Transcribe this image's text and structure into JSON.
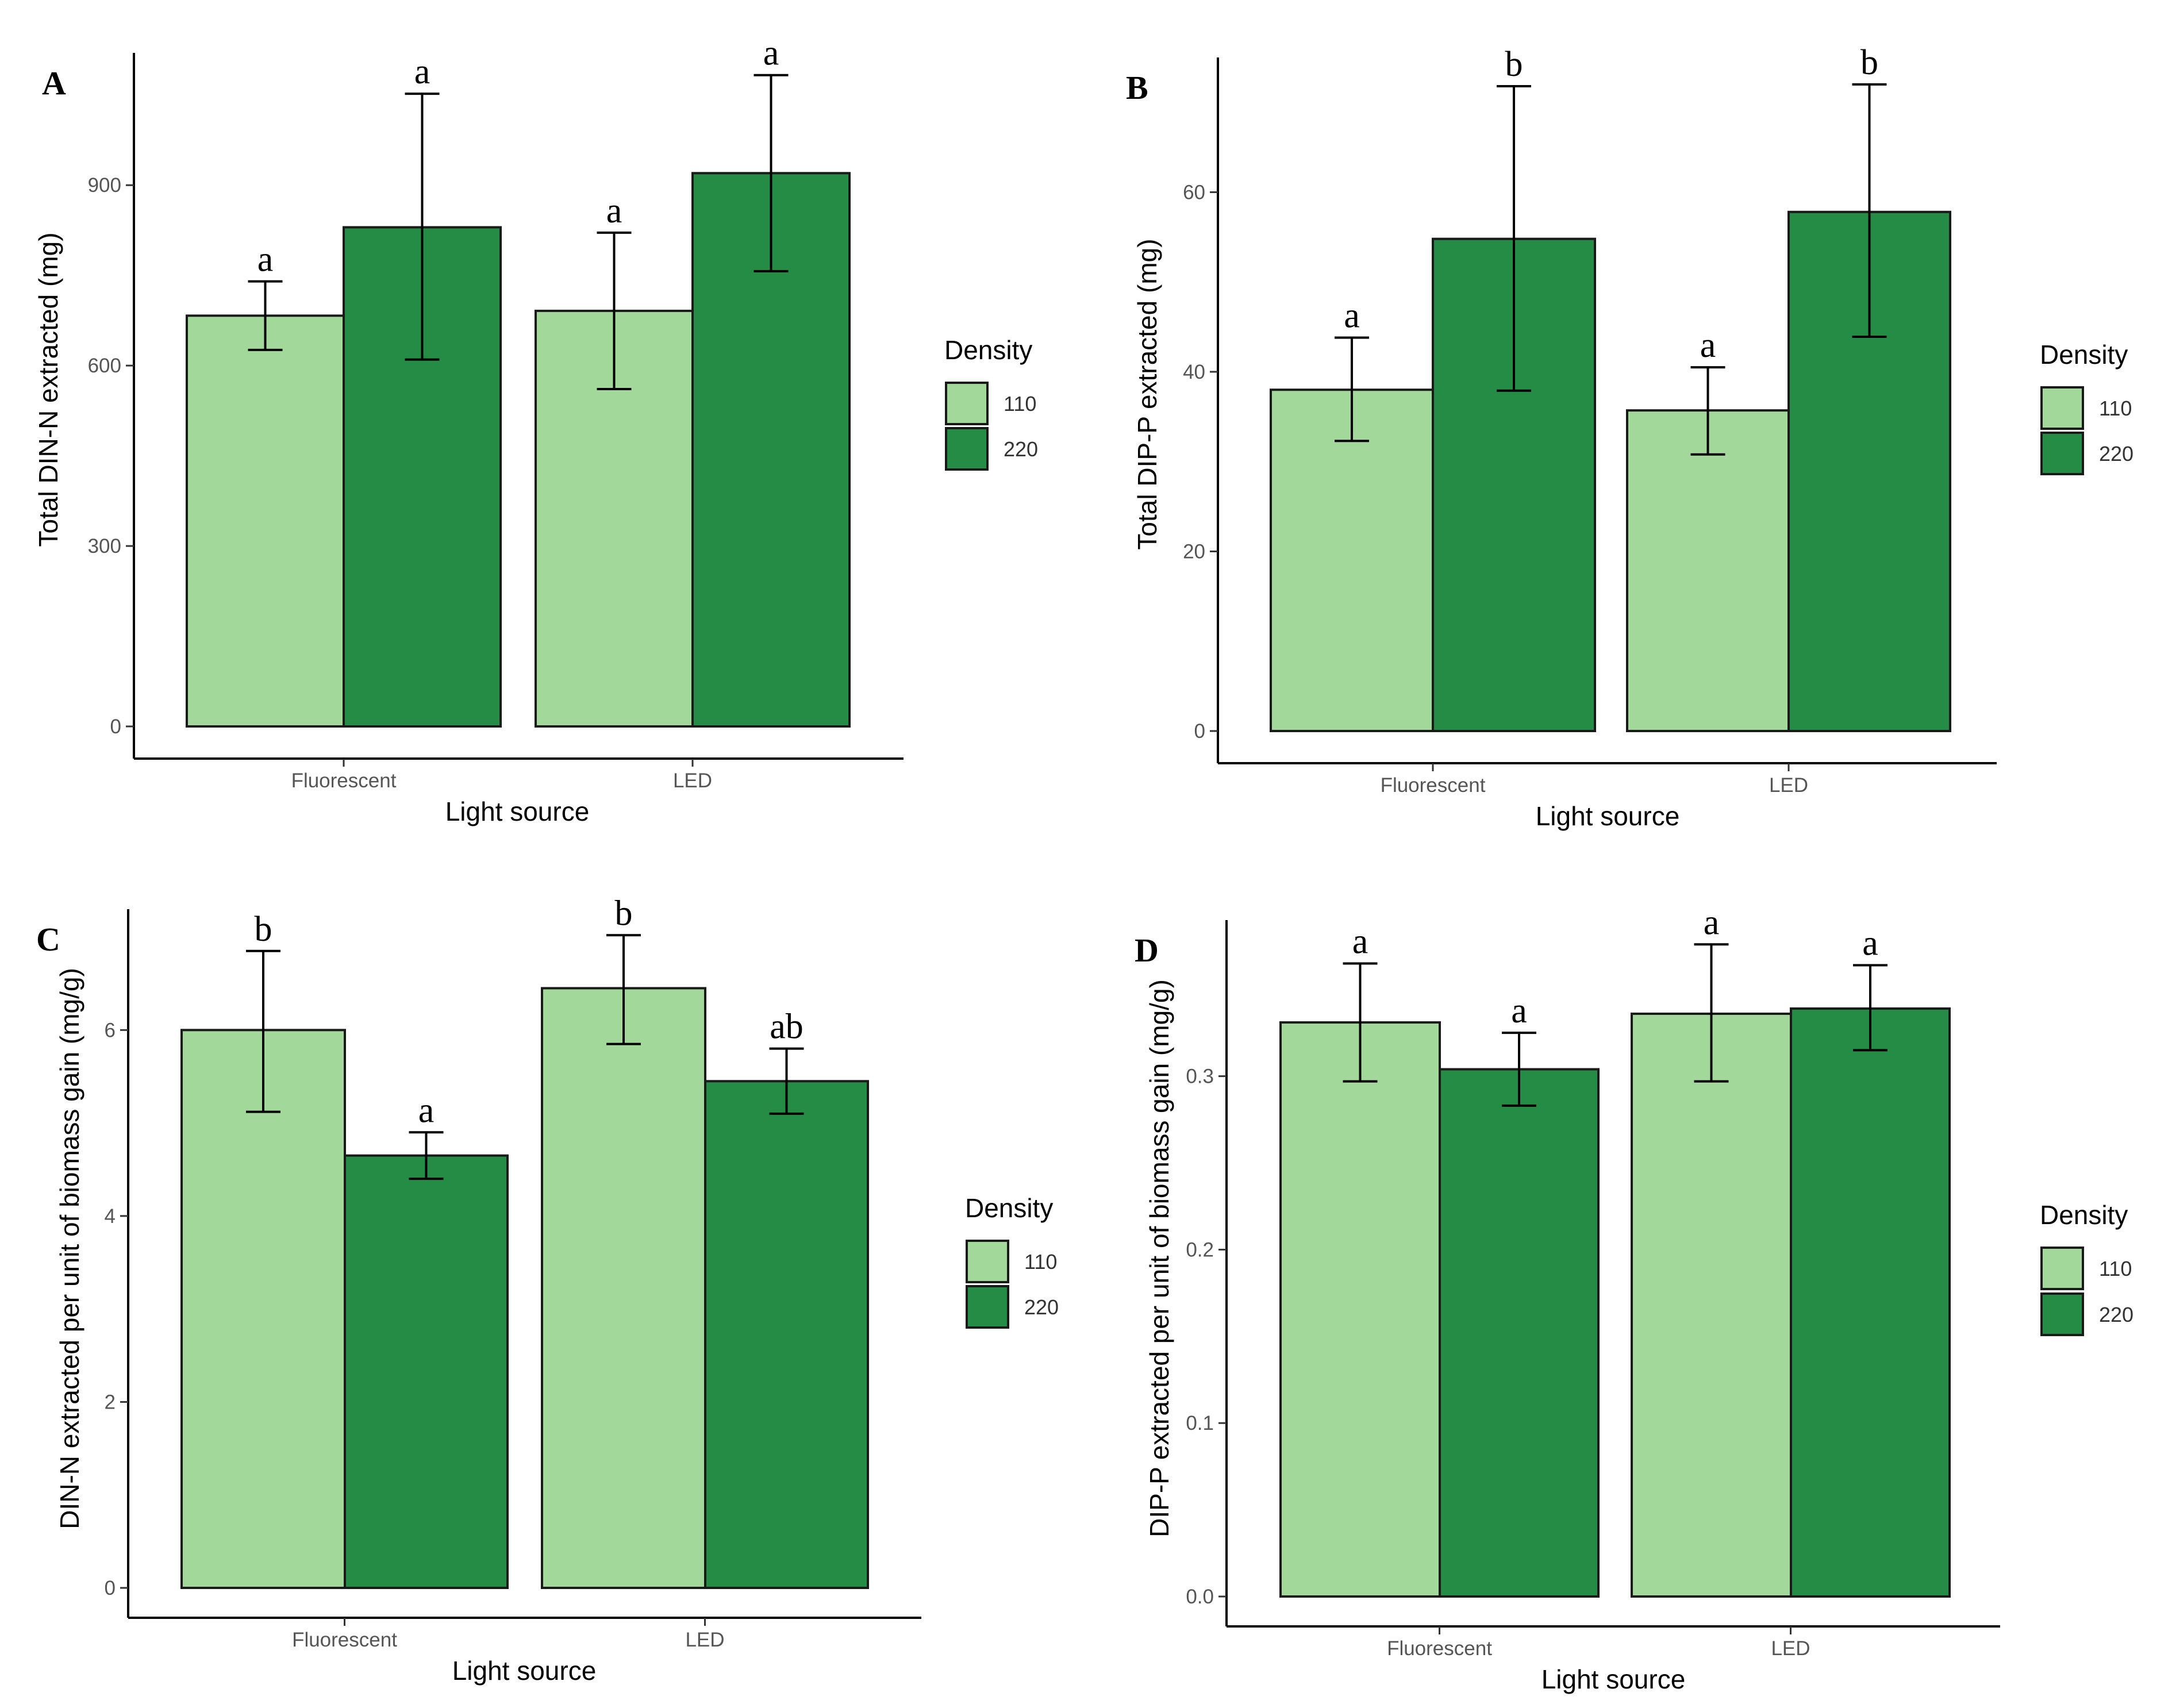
{
  "colors": {
    "d110": "#a2d99a",
    "d220": "#258c45",
    "stroke": "#1a1a1a"
  },
  "legend": {
    "title": "Density",
    "labels": [
      "110",
      "220"
    ]
  },
  "chart_data": [
    {
      "type": "bar",
      "panel": "A",
      "categories": [
        "Fluorescent",
        "LED"
      ],
      "xlabel": "Light source",
      "ylabel": "Total DIN-N extracted (mg)",
      "ylim": [
        0,
        1120
      ],
      "yticks": [
        0,
        300,
        600,
        900
      ],
      "series": [
        {
          "name": "110",
          "values": [
            683,
            691
          ],
          "err_low": [
            626,
            561
          ],
          "err_high": [
            740,
            821
          ],
          "letters": [
            "a",
            "a"
          ]
        },
        {
          "name": "220",
          "values": [
            830,
            920
          ],
          "err_low": [
            610,
            757
          ],
          "err_high": [
            1052,
            1083
          ],
          "letters": [
            "a",
            "a"
          ]
        }
      ]
    },
    {
      "type": "bar",
      "panel": "B",
      "categories": [
        "Fluorescent",
        "LED"
      ],
      "xlabel": "Light source",
      "ylabel": "Total DIP-P extracted (mg)",
      "ylim": [
        0,
        75
      ],
      "yticks": [
        0,
        20,
        40,
        60
      ],
      "series": [
        {
          "name": "110",
          "values": [
            38,
            35.7
          ],
          "err_low": [
            32.3,
            30.8
          ],
          "err_high": [
            43.8,
            40.5
          ],
          "letters": [
            "a",
            "a"
          ]
        },
        {
          "name": "220",
          "values": [
            54.8,
            57.8
          ],
          "err_low": [
            37.9,
            43.9
          ],
          "err_high": [
            71.8,
            72
          ],
          "letters": [
            "b",
            "b"
          ]
        }
      ]
    },
    {
      "type": "bar",
      "panel": "C",
      "categories": [
        "Fluorescent",
        "LED"
      ],
      "xlabel": "Light source",
      "ylabel": "DIN-N extracted per unit of biomass gain (mg/g)",
      "ylim": [
        0,
        7.3
      ],
      "yticks": [
        0,
        2,
        4,
        6
      ],
      "series": [
        {
          "name": "110",
          "values": [
            6,
            6.45
          ],
          "err_low": [
            5.12,
            5.85
          ],
          "err_high": [
            6.85,
            7.02
          ],
          "letters": [
            "b",
            "b"
          ]
        },
        {
          "name": "220",
          "values": [
            4.65,
            5.45
          ],
          "err_low": [
            4.4,
            5.1
          ],
          "err_high": [
            4.9,
            5.8
          ],
          "letters": [
            "a",
            "ab"
          ]
        }
      ]
    },
    {
      "type": "bar",
      "panel": "D",
      "categories": [
        "Fluorescent",
        "LED"
      ],
      "xlabel": "Light source",
      "ylabel": "DIP-P extracted per unit of biomass gain (mg/g)",
      "ylim": [
        0,
        0.39
      ],
      "yticks": [
        0.0,
        0.1,
        0.2,
        0.3
      ],
      "series": [
        {
          "name": "110",
          "values": [
            0.331,
            0.336
          ],
          "err_low": [
            0.297,
            0.297
          ],
          "err_high": [
            0.365,
            0.376
          ],
          "letters": [
            "a",
            "a"
          ]
        },
        {
          "name": "220",
          "values": [
            0.304,
            0.339
          ],
          "err_low": [
            0.283,
            0.315
          ],
          "err_high": [
            0.325,
            0.364
          ],
          "letters": [
            "a",
            "a"
          ]
        }
      ]
    }
  ]
}
